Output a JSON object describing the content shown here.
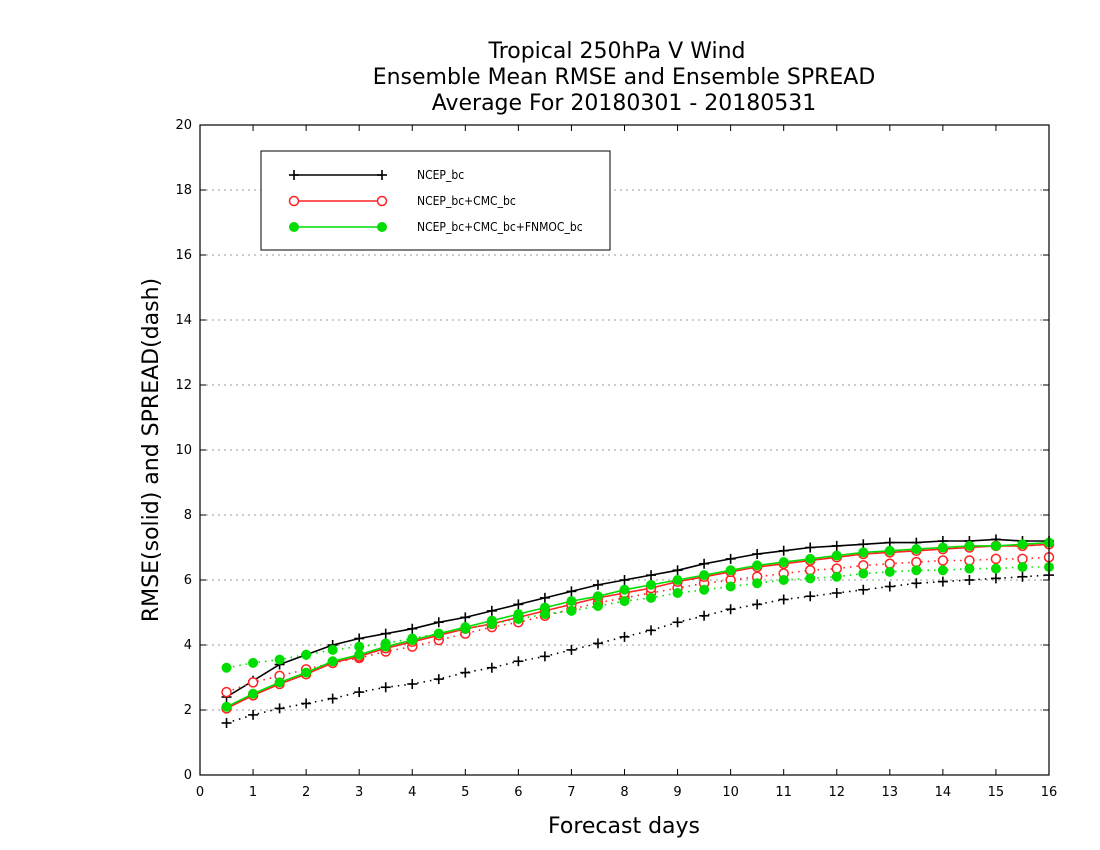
{
  "chart_data": {
    "type": "line",
    "title": [
      "Tropical 250hPa V Wind",
      "Ensemble Mean RMSE and Ensemble SPREAD",
      "Average For 20180301 - 20180531"
    ],
    "xlabel": "Forecast days",
    "ylabel": "RMSE(solid) and SPREAD(dash)",
    "xlim": [
      0,
      16
    ],
    "ylim": [
      0,
      20
    ],
    "xticks": [
      "0",
      "1",
      "2",
      "3",
      "4",
      "5",
      "6",
      "7",
      "8",
      "9",
      "10",
      "11",
      "12",
      "13",
      "14",
      "15",
      "16"
    ],
    "yticks": [
      "0",
      "2",
      "4",
      "6",
      "8",
      "10",
      "12",
      "14",
      "16",
      "18",
      "20"
    ],
    "grid": true,
    "legend_position": "top-left",
    "x": [
      0.5,
      1,
      1.5,
      2,
      2.5,
      3,
      3.5,
      4,
      4.5,
      5,
      5.5,
      6,
      6.5,
      7,
      7.5,
      8,
      8.5,
      9,
      9.5,
      10,
      10.5,
      11,
      11.5,
      12,
      12.5,
      13,
      13.5,
      14,
      14.5,
      15,
      15.5,
      16
    ],
    "series": [
      {
        "name": "NCEP_bc",
        "color": "#000000",
        "marker": "plus",
        "rmse": [
          2.4,
          2.9,
          3.4,
          3.7,
          4.0,
          4.2,
          4.35,
          4.5,
          4.7,
          4.85,
          5.05,
          5.25,
          5.45,
          5.65,
          5.85,
          6.0,
          6.15,
          6.3,
          6.5,
          6.65,
          6.8,
          6.9,
          7.0,
          7.05,
          7.1,
          7.15,
          7.15,
          7.2,
          7.2,
          7.25,
          7.2,
          7.2
        ],
        "spread": [
          1.6,
          1.85,
          2.05,
          2.2,
          2.35,
          2.55,
          2.7,
          2.8,
          2.95,
          3.15,
          3.3,
          3.5,
          3.65,
          3.85,
          4.05,
          4.25,
          4.45,
          4.7,
          4.9,
          5.1,
          5.25,
          5.4,
          5.5,
          5.6,
          5.7,
          5.8,
          5.9,
          5.95,
          6.0,
          6.05,
          6.1,
          6.15
        ]
      },
      {
        "name": "NCEP_bc+CMC_bc",
        "color": "#ff2222",
        "marker": "circle-open",
        "rmse": [
          2.05,
          2.45,
          2.8,
          3.1,
          3.45,
          3.65,
          3.9,
          4.1,
          4.3,
          4.5,
          4.65,
          4.85,
          5.05,
          5.25,
          5.45,
          5.6,
          5.75,
          5.95,
          6.1,
          6.25,
          6.4,
          6.5,
          6.6,
          6.7,
          6.8,
          6.85,
          6.9,
          6.95,
          7.0,
          7.05,
          7.05,
          7.1
        ],
        "spread": [
          2.55,
          2.85,
          3.05,
          3.25,
          3.45,
          3.6,
          3.8,
          3.95,
          4.15,
          4.35,
          4.55,
          4.7,
          4.9,
          5.1,
          5.3,
          5.45,
          5.6,
          5.75,
          5.9,
          6.0,
          6.1,
          6.2,
          6.3,
          6.35,
          6.45,
          6.5,
          6.55,
          6.6,
          6.6,
          6.65,
          6.65,
          6.7
        ]
      },
      {
        "name": "NCEP_bc+CMC_bc+FNMOC_bc",
        "color": "#00dd00",
        "marker": "circle-filled",
        "rmse": [
          2.1,
          2.5,
          2.85,
          3.15,
          3.5,
          3.7,
          3.95,
          4.15,
          4.35,
          4.55,
          4.75,
          4.95,
          5.15,
          5.35,
          5.5,
          5.7,
          5.85,
          6.0,
          6.15,
          6.3,
          6.45,
          6.55,
          6.65,
          6.75,
          6.85,
          6.9,
          6.95,
          7.0,
          7.05,
          7.05,
          7.1,
          7.15
        ],
        "spread": [
          3.3,
          3.45,
          3.55,
          3.7,
          3.85,
          3.95,
          4.05,
          4.2,
          4.35,
          4.5,
          4.65,
          4.8,
          4.95,
          5.05,
          5.2,
          5.35,
          5.45,
          5.6,
          5.7,
          5.8,
          5.9,
          6.0,
          6.05,
          6.1,
          6.2,
          6.25,
          6.3,
          6.3,
          6.35,
          6.35,
          6.4,
          6.4
        ]
      }
    ]
  }
}
